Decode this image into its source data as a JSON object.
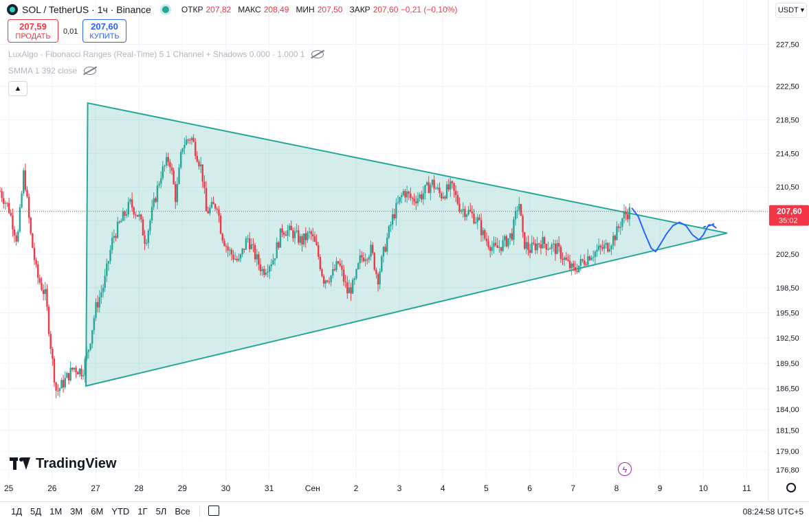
{
  "header": {
    "symbol": "SOL / TetherUS · 1ч · Binance",
    "ohlc": [
      {
        "label": "ОТКР",
        "value": "207,82"
      },
      {
        "label": "МАКС",
        "value": "208,49"
      },
      {
        "label": "МИН",
        "value": "207,50"
      },
      {
        "label": "ЗАКР",
        "value": "207,60 −0,21 (−0,10%)"
      }
    ]
  },
  "trade": {
    "sell_price": "207,59",
    "sell_label": "ПРОДАТЬ",
    "spread": "0,01",
    "buy_price": "207,60",
    "buy_label": "КУПИТЬ"
  },
  "indicators": [
    "LuxAlgo - Fibonacci Ranges (Real-Time) 5 1 Channel + Shadows 0.000 - 1.000 1",
    "SMMA 1 392 close"
  ],
  "currency": "USDT",
  "logo": "TradingView",
  "bottom_bar": {
    "ranges": [
      "1Д",
      "5Д",
      "1М",
      "3М",
      "6М",
      "YTD",
      "1Г",
      "5Л",
      "Все"
    ],
    "clock": "08:24:58 UTC+5"
  },
  "colors": {
    "up": "#26a69a",
    "down": "#f23645",
    "triangle": "#26a69a",
    "triangle_fill": "rgba(38,166,154,0.2)",
    "projection": "#2962ff",
    "price_label": "#f23645",
    "grid": "#f0f3fa"
  },
  "chart_data": {
    "type": "candlestick",
    "title": "",
    "price_scale": {
      "min": 175.5,
      "max": 229.5,
      "tick_values": [
        176.8,
        179.0,
        181.5,
        184.0,
        186.5,
        189.5,
        192.5,
        195.5,
        198.5,
        202.5,
        206.5,
        210.5,
        214.5,
        218.5,
        222.5,
        227.5
      ],
      "tick_labels": [
        "176,80",
        "179,00",
        "181,50",
        "184,00",
        "186,50",
        "189,50",
        "192,50",
        "195,50",
        "198,50",
        "202,50",
        "206,50",
        "210,50",
        "214,50",
        "218,50",
        "222,50",
        "227,50"
      ]
    },
    "time_scale": {
      "min": 24.8,
      "max": 42.5,
      "ticks": [
        {
          "t": 25,
          "label": "25"
        },
        {
          "t": 26,
          "label": "26"
        },
        {
          "t": 27,
          "label": "27"
        },
        {
          "t": 28,
          "label": "28"
        },
        {
          "t": 29,
          "label": "29"
        },
        {
          "t": 30,
          "label": "30"
        },
        {
          "t": 31,
          "label": "31"
        },
        {
          "t": 32,
          "label": "Сен"
        },
        {
          "t": 33,
          "label": "2"
        },
        {
          "t": 34,
          "label": "3"
        },
        {
          "t": 35,
          "label": "4"
        },
        {
          "t": 36,
          "label": "5"
        },
        {
          "t": 37,
          "label": "6"
        },
        {
          "t": 38,
          "label": "7"
        },
        {
          "t": 39,
          "label": "8"
        },
        {
          "t": 40,
          "label": "9"
        },
        {
          "t": 41,
          "label": "10"
        },
        {
          "t": 42,
          "label": "11"
        }
      ]
    },
    "price_path": [
      [
        24.8,
        210.0
      ],
      [
        25.0,
        208.0
      ],
      [
        25.2,
        204.0
      ],
      [
        25.35,
        212.5
      ],
      [
        25.5,
        205.0
      ],
      [
        25.65,
        200.0
      ],
      [
        25.85,
        197.5
      ],
      [
        26.0,
        190.0
      ],
      [
        26.1,
        186.0
      ],
      [
        26.3,
        187.5
      ],
      [
        26.5,
        189.0
      ],
      [
        26.7,
        188.5
      ],
      [
        26.85,
        191.5
      ],
      [
        27.0,
        196.0
      ],
      [
        27.2,
        199.0
      ],
      [
        27.4,
        204.5
      ],
      [
        27.6,
        206.5
      ],
      [
        27.8,
        208.5
      ],
      [
        28.0,
        207.0
      ],
      [
        28.15,
        204.0
      ],
      [
        28.3,
        207.5
      ],
      [
        28.5,
        212.0
      ],
      [
        28.7,
        214.0
      ],
      [
        28.85,
        209.0
      ],
      [
        29.0,
        215.5
      ],
      [
        29.2,
        216.5
      ],
      [
        29.3,
        215.0
      ],
      [
        29.45,
        212.5
      ],
      [
        29.55,
        207.5
      ],
      [
        29.8,
        208.5
      ],
      [
        29.9,
        205.0
      ],
      [
        30.05,
        203.0
      ],
      [
        30.3,
        201.5
      ],
      [
        30.5,
        204.5
      ],
      [
        30.7,
        202.0
      ],
      [
        30.85,
        200.5
      ],
      [
        31.1,
        202.0
      ],
      [
        31.3,
        205.5
      ],
      [
        31.55,
        205.0
      ],
      [
        31.75,
        204.0
      ],
      [
        31.95,
        205.0
      ],
      [
        32.1,
        203.0
      ],
      [
        32.25,
        199.5
      ],
      [
        32.45,
        200.0
      ],
      [
        32.6,
        201.5
      ],
      [
        32.8,
        198.0
      ],
      [
        32.95,
        198.8
      ],
      [
        33.1,
        202.0
      ],
      [
        33.35,
        203.0
      ],
      [
        33.5,
        199.5
      ],
      [
        33.65,
        203.0
      ],
      [
        33.85,
        207.0
      ],
      [
        34.1,
        210.0
      ],
      [
        34.3,
        209.0
      ],
      [
        34.5,
        209.5
      ],
      [
        34.75,
        211.0
      ],
      [
        34.95,
        209.5
      ],
      [
        35.2,
        210.5
      ],
      [
        35.4,
        208.0
      ],
      [
        35.6,
        207.5
      ],
      [
        35.8,
        206.5
      ],
      [
        35.95,
        204.5
      ],
      [
        36.2,
        203.0
      ],
      [
        36.45,
        204.0
      ],
      [
        36.6,
        205.0
      ],
      [
        36.75,
        209.0
      ],
      [
        36.85,
        204.0
      ],
      [
        37.0,
        203.0
      ],
      [
        37.25,
        204.0
      ],
      [
        37.45,
        203.5
      ],
      [
        37.65,
        203.0
      ],
      [
        37.85,
        201.5
      ],
      [
        38.0,
        200.5
      ],
      [
        38.2,
        201.5
      ],
      [
        38.4,
        202.5
      ],
      [
        38.6,
        203.0
      ],
      [
        38.8,
        203.5
      ],
      [
        39.0,
        205.0
      ],
      [
        39.15,
        207.0
      ],
      [
        39.3,
        207.6
      ]
    ],
    "triangle": [
      [
        26.82,
        220.5
      ],
      [
        26.78,
        186.8
      ],
      [
        41.55,
        205.0
      ]
    ],
    "projection": [
      [
        39.35,
        208.0
      ],
      [
        39.5,
        207.0
      ],
      [
        39.65,
        205.0
      ],
      [
        39.8,
        203.2
      ],
      [
        39.9,
        202.8
      ],
      [
        40.0,
        203.6
      ],
      [
        40.15,
        204.9
      ],
      [
        40.3,
        205.9
      ],
      [
        40.45,
        206.3
      ],
      [
        40.6,
        205.9
      ],
      [
        40.75,
        204.8
      ],
      [
        40.9,
        204.2
      ],
      [
        41.0,
        204.8
      ],
      [
        41.1,
        205.8
      ],
      [
        41.2,
        206.0
      ],
      [
        41.3,
        205.6
      ]
    ],
    "projection_tail": [
      [
        41.0,
        205.7
      ],
      [
        41.15,
        206.0
      ],
      [
        41.25,
        206.1
      ]
    ],
    "last_price": {
      "value": 207.6,
      "label": "207,60",
      "countdown": "35:02"
    }
  }
}
